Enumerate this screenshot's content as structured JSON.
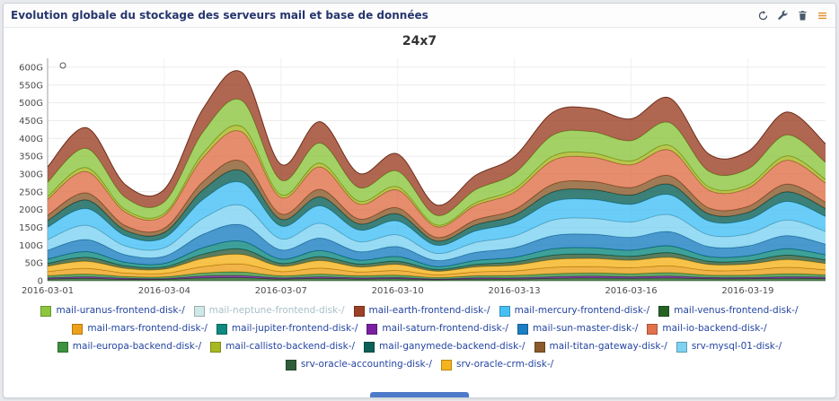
{
  "widget": {
    "title": "Evolution globale du stockage des serveurs mail et base de données",
    "toolbar": [
      {
        "icon": "refresh-icon"
      },
      {
        "icon": "wrench-icon"
      },
      {
        "icon": "trash-icon"
      },
      {
        "icon": "menu-icon"
      }
    ],
    "accent_color": "#4d7ac9"
  },
  "chart_data": {
    "type": "area",
    "stacked": true,
    "title": "24x7",
    "xlabel": "",
    "ylabel": "",
    "ylim": [
      0,
      625
    ],
    "grid": true,
    "legend_position": "bottom",
    "x": [
      "2016-03-01",
      "2016-03-02",
      "2016-03-03",
      "2016-03-04",
      "2016-03-05",
      "2016-03-06",
      "2016-03-07",
      "2016-03-08",
      "2016-03-09",
      "2016-03-10",
      "2016-03-11",
      "2016-03-12",
      "2016-03-13",
      "2016-03-14",
      "2016-03-15",
      "2016-03-16",
      "2016-03-17",
      "2016-03-18",
      "2016-03-19",
      "2016-03-20",
      "2016-03-21"
    ],
    "x_tick_labels": [
      "2016-03-01",
      "2016-03-04",
      "2016-03-07",
      "2016-03-10",
      "2016-03-13",
      "2016-03-16",
      "2016-03-19"
    ],
    "y_ticks": [
      {
        "value": 0,
        "label": "0"
      },
      {
        "value": 50,
        "label": "50G"
      },
      {
        "value": 100,
        "label": "100G"
      },
      {
        "value": 150,
        "label": "150G"
      },
      {
        "value": 200,
        "label": "200G"
      },
      {
        "value": 250,
        "label": "250G"
      },
      {
        "value": 300,
        "label": "300G"
      },
      {
        "value": 350,
        "label": "350G"
      },
      {
        "value": 400,
        "label": "400G"
      },
      {
        "value": 450,
        "label": "450G"
      },
      {
        "value": 500,
        "label": "500G"
      },
      {
        "value": 550,
        "label": "550G"
      },
      {
        "value": 600,
        "label": "600G"
      }
    ],
    "series": [
      {
        "name": "mail-venus-frontend-disk-/",
        "color": "#256325",
        "values": [
          5,
          7,
          4,
          4,
          8,
          9,
          5,
          7,
          5,
          6,
          3,
          5,
          5,
          7,
          8,
          7,
          8,
          6,
          6,
          7,
          6
        ]
      },
      {
        "name": "mail-saturn-frontend-disk-/",
        "color": "#7b1fa2",
        "values": [
          3,
          4,
          3,
          2,
          5,
          5,
          3,
          4,
          3,
          3,
          2,
          3,
          3,
          4,
          5,
          4,
          5,
          3,
          3,
          4,
          4
        ]
      },
      {
        "name": "mail-europa-backend-disk-/",
        "color": "#3d9140",
        "values": [
          6,
          8,
          5,
          5,
          9,
          11,
          6,
          8,
          6,
          7,
          4,
          6,
          7,
          9,
          9,
          9,
          10,
          7,
          7,
          9,
          7
        ]
      },
      {
        "name": "mail-mars-frontend-disk-/",
        "color": "#eda11a",
        "values": [
          12,
          16,
          10,
          10,
          18,
          22,
          12,
          17,
          11,
          13,
          8,
          11,
          13,
          18,
          18,
          17,
          19,
          13,
          14,
          18,
          14
        ]
      },
      {
        "name": "srv-oracle-crm-disk-/",
        "color": "#f5b41d",
        "values": [
          15,
          20,
          13,
          12,
          23,
          27,
          15,
          21,
          14,
          17,
          10,
          14,
          16,
          22,
          23,
          21,
          24,
          17,
          17,
          22,
          18
        ]
      },
      {
        "name": "srv-oracle-accounting-disk-/",
        "color": "#2f5d3a",
        "values": [
          8,
          11,
          7,
          6,
          12,
          15,
          8,
          11,
          8,
          9,
          5,
          7,
          9,
          12,
          12,
          11,
          13,
          9,
          9,
          12,
          10
        ]
      },
      {
        "name": "mail-jupiter-frontend-disk-/",
        "color": "#0e8a80",
        "values": [
          12,
          16,
          10,
          10,
          18,
          22,
          12,
          17,
          11,
          13,
          8,
          11,
          13,
          18,
          18,
          17,
          19,
          13,
          14,
          18,
          14
        ]
      },
      {
        "name": "mail-sun-master-disk-/",
        "color": "#1b7ec2",
        "values": [
          25,
          34,
          21,
          20,
          38,
          46,
          26,
          35,
          24,
          28,
          17,
          23,
          27,
          37,
          38,
          36,
          40,
          28,
          28,
          37,
          30
        ]
      },
      {
        "name": "srv-mysql-01-disk-/",
        "color": "#7dd2f2",
        "values": [
          30,
          40,
          25,
          24,
          45,
          55,
          31,
          42,
          28,
          33,
          20,
          28,
          33,
          44,
          45,
          43,
          48,
          33,
          34,
          44,
          36
        ]
      },
      {
        "name": "mail-mercury-frontend-disk-/",
        "color": "#45c0f5",
        "values": [
          35,
          47,
          29,
          28,
          53,
          64,
          36,
          49,
          33,
          39,
          23,
          32,
          38,
          52,
          53,
          50,
          56,
          39,
          40,
          52,
          42
        ]
      },
      {
        "name": "mail-neptune-frontend-disk-/",
        "color": "#cfe8e8",
        "disabled": true,
        "values": [
          0,
          0,
          0,
          0,
          0,
          0,
          0,
          0,
          0,
          0,
          0,
          0,
          0,
          0,
          0,
          0,
          0,
          0,
          0,
          0,
          0
        ]
      },
      {
        "name": "mail-ganymede-backend-disk-/",
        "color": "#0b6157",
        "values": [
          18,
          24,
          15,
          15,
          27,
          33,
          19,
          25,
          17,
          20,
          12,
          17,
          20,
          27,
          27,
          26,
          29,
          20,
          20,
          27,
          22
        ]
      },
      {
        "name": "mail-titan-gateway-disk-/",
        "color": "#8a5a2b",
        "values": [
          15,
          20,
          13,
          12,
          23,
          27,
          15,
          21,
          14,
          17,
          10,
          14,
          16,
          22,
          23,
          21,
          24,
          17,
          17,
          22,
          18
        ]
      },
      {
        "name": "mail-io-backend-disk-/",
        "color": "#e0714a",
        "values": [
          45,
          60,
          38,
          36,
          68,
          82,
          46,
          63,
          42,
          50,
          30,
          41,
          49,
          67,
          68,
          64,
          72,
          50,
          51,
          67,
          54
        ]
      },
      {
        "name": "mail-callisto-backend-disk-/",
        "color": "#a8b820",
        "values": [
          8,
          11,
          7,
          6,
          12,
          15,
          8,
          11,
          8,
          9,
          5,
          7,
          9,
          12,
          12,
          11,
          13,
          9,
          9,
          12,
          10
        ]
      },
      {
        "name": "mail-uranus-frontend-disk-/",
        "color": "#8cc63e",
        "values": [
          40,
          54,
          34,
          32,
          60,
          73,
          41,
          56,
          38,
          44,
          27,
          37,
          44,
          59,
          60,
          57,
          64,
          44,
          45,
          59,
          48
        ]
      },
      {
        "name": "mail-earth-frontend-disk-/",
        "color": "#9c4126",
        "values": [
          43,
          58,
          36,
          35,
          65,
          79,
          44,
          60,
          40,
          48,
          29,
          40,
          47,
          64,
          65,
          61,
          69,
          48,
          49,
          64,
          52
        ]
      }
    ],
    "legend_order": [
      "mail-uranus-frontend-disk-/",
      "mail-neptune-frontend-disk-/",
      "mail-earth-frontend-disk-/",
      "mail-mercury-frontend-disk-/",
      "mail-venus-frontend-disk-/",
      "mail-mars-frontend-disk-/",
      "mail-jupiter-frontend-disk-/",
      "mail-saturn-frontend-disk-/",
      "mail-sun-master-disk-/",
      "mail-io-backend-disk-/",
      "mail-europa-backend-disk-/",
      "mail-callisto-backend-disk-/",
      "mail-ganymede-backend-disk-/",
      "mail-titan-gateway-disk-/",
      "srv-mysql-01-disk-/",
      "srv-oracle-accounting-disk-/",
      "srv-oracle-crm-disk-/"
    ]
  }
}
